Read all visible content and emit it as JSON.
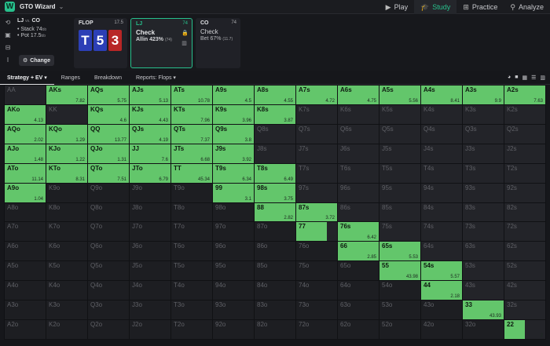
{
  "app": {
    "name": "GTO Wizard",
    "logo_letter": "W",
    "caret": "⌄",
    "nav": [
      {
        "label": "Play",
        "icon": "play-icon",
        "active": false
      },
      {
        "label": "Study",
        "icon": "study-icon",
        "active": true
      },
      {
        "label": "Practice",
        "icon": "practice-icon",
        "active": false
      },
      {
        "label": "Analyze",
        "icon": "analyze-icon",
        "active": false
      }
    ]
  },
  "spot": {
    "matchup": "LJ",
    "vs": "vs.",
    "villain": "CO",
    "stack_label": "Stack 74",
    "stack_unit": "bb",
    "pot_label": "Pot 17.5",
    "pot_unit": "bb",
    "change_label": "Change"
  },
  "flop_card": {
    "title": "FLOP",
    "pot": "17.5",
    "cards": [
      {
        "rank": "T",
        "color": "blue"
      },
      {
        "rank": "5",
        "color": "blue"
      },
      {
        "rank": "3",
        "color": "red"
      }
    ]
  },
  "lj_card": {
    "title": "LJ",
    "stack": "74",
    "action": "Check",
    "sub": "Allin 423%",
    "sub_small": "(74)"
  },
  "co_card": {
    "title": "CO",
    "stack": "74",
    "action": "Check",
    "sub": "Bet 67%",
    "sub_small": "(11.7)"
  },
  "toolbar": {
    "tabs": [
      {
        "label": "Strategy + EV ▾",
        "active": true
      },
      {
        "label": "Ranges",
        "active": false
      },
      {
        "label": "Breakdown",
        "active": false
      },
      {
        "label": "Reports: Flops ▾",
        "active": false
      }
    ]
  },
  "colors": {
    "accent": "#27c08c",
    "check_fill": "#63c66b",
    "cell_bg": "#232429",
    "card_blue": "#2c3fb6",
    "card_red": "#b82626"
  },
  "matrix": [
    [
      [
        "AA",
        0,
        ""
      ],
      [
        "AKs",
        1,
        "7.82"
      ],
      [
        "AQs",
        1,
        "5.75"
      ],
      [
        "AJs",
        1,
        "5.13"
      ],
      [
        "ATs",
        1,
        "10.78"
      ],
      [
        "A9s",
        1,
        "4.5"
      ],
      [
        "A8s",
        1,
        "4.55"
      ],
      [
        "A7s",
        1,
        "4.72"
      ],
      [
        "A6s",
        1,
        "4.75"
      ],
      [
        "A5s",
        1,
        "5.56"
      ],
      [
        "A4s",
        1,
        "8.41"
      ],
      [
        "A3s",
        1,
        "9.9"
      ],
      [
        "A2s",
        1,
        "7.63"
      ]
    ],
    [
      [
        "AKo",
        1,
        "4.13"
      ],
      [
        "KK",
        0,
        ""
      ],
      [
        "KQs",
        1,
        "4.6"
      ],
      [
        "KJs",
        1,
        "4.43"
      ],
      [
        "KTs",
        1,
        "7.96"
      ],
      [
        "K9s",
        1,
        "3.96"
      ],
      [
        "K8s",
        1,
        "3.87"
      ],
      [
        "K7s",
        0,
        ""
      ],
      [
        "K6s",
        0,
        ""
      ],
      [
        "K5s",
        0,
        ""
      ],
      [
        "K4s",
        0,
        ""
      ],
      [
        "K3s",
        0,
        ""
      ],
      [
        "K2s",
        0,
        ""
      ]
    ],
    [
      [
        "AQo",
        1,
        "2.02"
      ],
      [
        "KQo",
        1,
        "1.29"
      ],
      [
        "QQ",
        1,
        "13.77"
      ],
      [
        "QJs",
        1,
        "4.19"
      ],
      [
        "QTs",
        1,
        "7.37"
      ],
      [
        "Q9s",
        1,
        "3.8"
      ],
      [
        "Q8s",
        0,
        ""
      ],
      [
        "Q7s",
        0,
        ""
      ],
      [
        "Q6s",
        0,
        ""
      ],
      [
        "Q5s",
        0,
        ""
      ],
      [
        "Q4s",
        0,
        ""
      ],
      [
        "Q3s",
        0,
        ""
      ],
      [
        "Q2s",
        0,
        ""
      ]
    ],
    [
      [
        "AJo",
        1,
        "1.48"
      ],
      [
        "KJo",
        1,
        "1.22"
      ],
      [
        "QJo",
        1,
        "1.31"
      ],
      [
        "JJ",
        1,
        "7.6"
      ],
      [
        "JTs",
        1,
        "6.68"
      ],
      [
        "J9s",
        1,
        "3.92"
      ],
      [
        "J8s",
        0,
        ""
      ],
      [
        "J7s",
        0,
        ""
      ],
      [
        "J6s",
        0,
        ""
      ],
      [
        "J5s",
        0,
        ""
      ],
      [
        "J4s",
        0,
        ""
      ],
      [
        "J3s",
        0,
        ""
      ],
      [
        "J2s",
        0,
        ""
      ]
    ],
    [
      [
        "ATo",
        1,
        "11.14"
      ],
      [
        "KTo",
        1,
        "8.31"
      ],
      [
        "QTo",
        1,
        "7.51"
      ],
      [
        "JTo",
        1,
        "6.79"
      ],
      [
        "TT",
        1,
        "45.34"
      ],
      [
        "T9s",
        1,
        "6.34"
      ],
      [
        "T8s",
        1,
        "6.49"
      ],
      [
        "T7s",
        0,
        ""
      ],
      [
        "T6s",
        0,
        ""
      ],
      [
        "T5s",
        0,
        ""
      ],
      [
        "T4s",
        0,
        ""
      ],
      [
        "T3s",
        0,
        ""
      ],
      [
        "T2s",
        0,
        ""
      ]
    ],
    [
      [
        "A9o",
        1,
        "1.04"
      ],
      [
        "K9o",
        0,
        ""
      ],
      [
        "Q9o",
        0,
        ""
      ],
      [
        "J9o",
        0,
        ""
      ],
      [
        "T9o",
        0,
        ""
      ],
      [
        "99",
        1,
        "3.1"
      ],
      [
        "98s",
        1,
        "3.75"
      ],
      [
        "97s",
        0,
        ""
      ],
      [
        "96s",
        0,
        ""
      ],
      [
        "95s",
        0,
        ""
      ],
      [
        "94s",
        0,
        ""
      ],
      [
        "93s",
        0,
        ""
      ],
      [
        "92s",
        0,
        ""
      ]
    ],
    [
      [
        "A8o",
        0,
        ""
      ],
      [
        "K8o",
        0,
        ""
      ],
      [
        "Q8o",
        0,
        ""
      ],
      [
        "J8o",
        0,
        ""
      ],
      [
        "T8o",
        0,
        ""
      ],
      [
        "98o",
        0,
        ""
      ],
      [
        "88",
        1,
        "2.82"
      ],
      [
        "87s",
        1,
        "3.72"
      ],
      [
        "86s",
        0,
        ""
      ],
      [
        "85s",
        0,
        ""
      ],
      [
        "84s",
        0,
        ""
      ],
      [
        "83s",
        0,
        ""
      ],
      [
        "82s",
        0,
        ""
      ]
    ],
    [
      [
        "A7o",
        0,
        ""
      ],
      [
        "K7o",
        0,
        ""
      ],
      [
        "Q7o",
        0,
        ""
      ],
      [
        "J7o",
        0,
        ""
      ],
      [
        "T7o",
        0,
        ""
      ],
      [
        "97o",
        0,
        ""
      ],
      [
        "87o",
        0,
        ""
      ],
      [
        "77",
        0.75,
        "2.7"
      ],
      [
        "76s",
        1,
        "6.42"
      ],
      [
        "75s",
        0,
        ""
      ],
      [
        "74s",
        0,
        ""
      ],
      [
        "73s",
        0,
        ""
      ],
      [
        "72s",
        0,
        ""
      ]
    ],
    [
      [
        "A6o",
        0,
        ""
      ],
      [
        "K6o",
        0,
        ""
      ],
      [
        "Q6o",
        0,
        ""
      ],
      [
        "J6o",
        0,
        ""
      ],
      [
        "T6o",
        0,
        ""
      ],
      [
        "96o",
        0,
        ""
      ],
      [
        "86o",
        0,
        ""
      ],
      [
        "76o",
        0,
        ""
      ],
      [
        "66",
        1,
        "2.85"
      ],
      [
        "65s",
        1,
        "5.53"
      ],
      [
        "64s",
        0,
        ""
      ],
      [
        "63s",
        0,
        ""
      ],
      [
        "62s",
        0,
        ""
      ]
    ],
    [
      [
        "A5o",
        0,
        ""
      ],
      [
        "K5o",
        0,
        ""
      ],
      [
        "Q5o",
        0,
        ""
      ],
      [
        "J5o",
        0,
        ""
      ],
      [
        "T5o",
        0,
        ""
      ],
      [
        "95o",
        0,
        ""
      ],
      [
        "85o",
        0,
        ""
      ],
      [
        "75o",
        0,
        ""
      ],
      [
        "65o",
        0,
        ""
      ],
      [
        "55",
        1,
        "43.98"
      ],
      [
        "54s",
        1,
        "5.57"
      ],
      [
        "53s",
        0,
        ""
      ],
      [
        "52s",
        0,
        ""
      ]
    ],
    [
      [
        "A4o",
        0,
        ""
      ],
      [
        "K4o",
        0,
        ""
      ],
      [
        "Q4o",
        0,
        ""
      ],
      [
        "J4o",
        0,
        ""
      ],
      [
        "T4o",
        0,
        ""
      ],
      [
        "94o",
        0,
        ""
      ],
      [
        "84o",
        0,
        ""
      ],
      [
        "74o",
        0,
        ""
      ],
      [
        "64o",
        0,
        ""
      ],
      [
        "54o",
        0,
        ""
      ],
      [
        "44",
        1,
        "2.18"
      ],
      [
        "43s",
        0,
        ""
      ],
      [
        "42s",
        0,
        ""
      ]
    ],
    [
      [
        "A3o",
        0,
        ""
      ],
      [
        "K3o",
        0,
        ""
      ],
      [
        "Q3o",
        0,
        ""
      ],
      [
        "J3o",
        0,
        ""
      ],
      [
        "T3o",
        0,
        ""
      ],
      [
        "93o",
        0,
        ""
      ],
      [
        "83o",
        0,
        ""
      ],
      [
        "73o",
        0,
        ""
      ],
      [
        "63o",
        0,
        ""
      ],
      [
        "53o",
        0,
        ""
      ],
      [
        "43o",
        0,
        ""
      ],
      [
        "33",
        1,
        "43.93"
      ],
      [
        "32s",
        0,
        ""
      ]
    ],
    [
      [
        "A2o",
        0,
        ""
      ],
      [
        "K2o",
        0,
        ""
      ],
      [
        "Q2o",
        0,
        ""
      ],
      [
        "J2o",
        0,
        ""
      ],
      [
        "T2o",
        0,
        ""
      ],
      [
        "92o",
        0,
        ""
      ],
      [
        "82o",
        0,
        ""
      ],
      [
        "72o",
        0,
        ""
      ],
      [
        "62o",
        0,
        ""
      ],
      [
        "52o",
        0,
        ""
      ],
      [
        "42o",
        0,
        ""
      ],
      [
        "32o",
        0,
        ""
      ],
      [
        "22",
        0.5,
        "2"
      ]
    ]
  ]
}
